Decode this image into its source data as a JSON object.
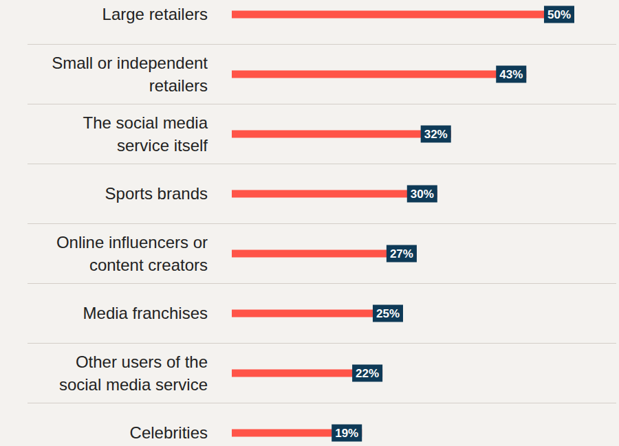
{
  "chart_data": {
    "type": "bar",
    "orientation": "horizontal",
    "categories": [
      "Large retailers",
      "Small or independent retailers",
      "The social media service itself",
      "Sports brands",
      "Online influencers or content creators",
      "Media franchises",
      "Other users of the social media service",
      "Celebrities"
    ],
    "values": [
      50,
      43,
      32,
      30,
      27,
      25,
      22,
      19
    ],
    "value_labels": [
      "50%",
      "43%",
      "32%",
      "30%",
      "27%",
      "25%",
      "22%",
      "19%"
    ],
    "color": "#ff5448",
    "xlim": [
      0,
      50
    ],
    "data_labels": true,
    "tick_labels": "y"
  }
}
